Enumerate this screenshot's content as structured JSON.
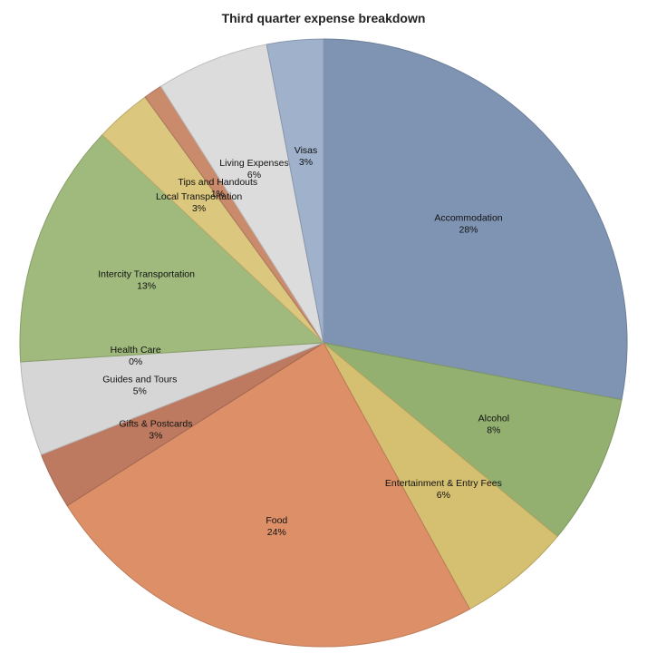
{
  "chart_data": {
    "type": "pie",
    "title": "Third quarter expense breakdown",
    "slices": [
      {
        "label": "Accommodation",
        "value": 28,
        "value_label": "28%",
        "color": "#7f94b3"
      },
      {
        "label": "Alcohol",
        "value": 8,
        "value_label": "8%",
        "color": "#93b071"
      },
      {
        "label": "Entertainment & Entry Fees",
        "value": 6,
        "value_label": "6%",
        "color": "#d4c070"
      },
      {
        "label": "Food",
        "value": 24,
        "value_label": "24%",
        "color": "#dd9068"
      },
      {
        "label": "Gifts & Postcards",
        "value": 3,
        "value_label": "3%",
        "color": "#bd7a60"
      },
      {
        "label": "Guides and Tours",
        "value": 5,
        "value_label": "5%",
        "color": "#d6d6d6"
      },
      {
        "label": "Health Care",
        "value": 0,
        "value_label": "0%",
        "color": "#8da5c4"
      },
      {
        "label": "Intercity Transportation",
        "value": 13,
        "value_label": "13%",
        "color": "#9fba7c"
      },
      {
        "label": "Local Transportation",
        "value": 3,
        "value_label": "3%",
        "color": "#dbc77d"
      },
      {
        "label": "Tips and Handouts",
        "value": 1,
        "value_label": "1%",
        "color": "#c98b6c"
      },
      {
        "label": "Living Expenses",
        "value": 6,
        "value_label": "6%",
        "color": "#dcdcdc"
      },
      {
        "label": "Visas",
        "value": 3,
        "value_label": "3%",
        "color": "#9fb1cb"
      }
    ]
  }
}
